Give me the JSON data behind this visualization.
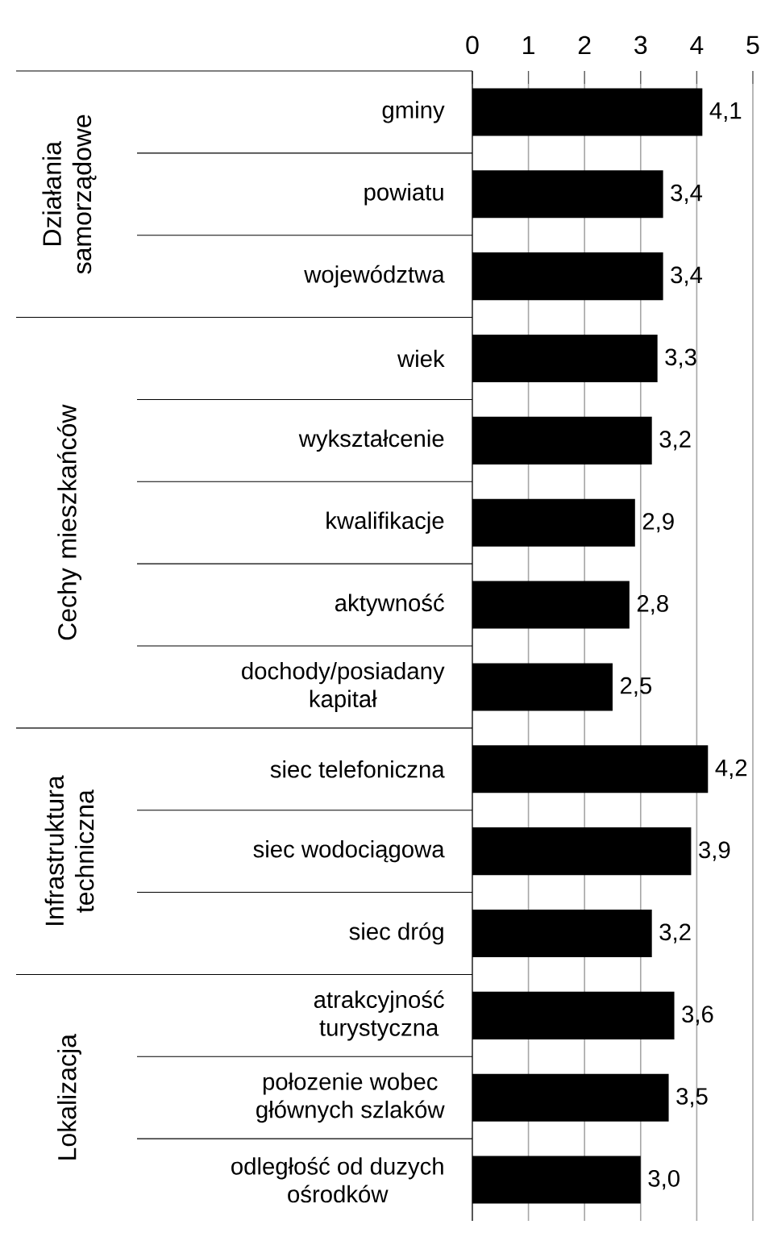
{
  "chart_data": {
    "type": "bar",
    "orientation": "horizontal",
    "categories": [
      "gminy",
      "powiatu",
      "województwa",
      "wiek",
      "wykształcenie",
      "kwalifikacje",
      "aktywność",
      "dochody/posiadany kapitał",
      "siec telefoniczna",
      "siec wodociągowa",
      "siec dróg",
      "atrakcyjność turystyczna",
      "połozenie wobec głównych  szlaków",
      "odległość od duzych ośrodków"
    ],
    "values": [
      4.1,
      3.4,
      3.4,
      3.3,
      3.2,
      2.9,
      2.8,
      2.5,
      4.2,
      3.9,
      3.2,
      3.6,
      3.5,
      3.0
    ],
    "value_labels": [
      "4,1",
      "3,4",
      "3,4",
      "3,3",
      "3,2",
      "2,9",
      "2,8",
      "2,5",
      "4,2",
      "3,9",
      "3,2",
      "3,6",
      "3,5",
      "3,0"
    ],
    "color": "#000000",
    "xlim": [
      0,
      5
    ],
    "xticks": [
      0,
      1,
      2,
      3,
      4,
      5
    ],
    "grid": "x",
    "annotations": [
      "Działania samorządowe",
      "Cechy mieszkańców",
      "Infrastruktura techniczna",
      "Lokalizacja"
    ]
  }
}
